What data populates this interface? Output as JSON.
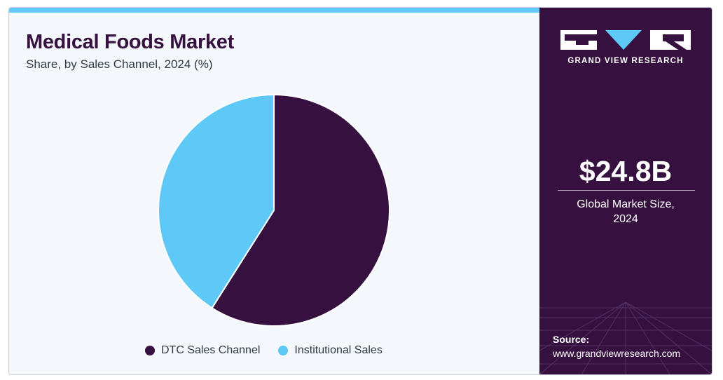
{
  "header": {
    "title": "Medical Foods Market",
    "subtitle": "Share, by Sales Channel, 2024 (%)"
  },
  "chart_data": {
    "type": "pie",
    "title": "Medical Foods Market",
    "subtitle": "Share, by Sales Channel, 2024 (%)",
    "categories": [
      "DTC Sales Channel",
      "Institutional Sales"
    ],
    "values": [
      59,
      41
    ],
    "colors": [
      "#36113f",
      "#5ec8f6"
    ],
    "start_angle_deg": 0,
    "direction": "clockwise",
    "legend_position": "bottom"
  },
  "brand": {
    "name": "GRAND VIEW RESEARCH",
    "logo_icon": "gvr-logo-icon"
  },
  "stat": {
    "value": "$24.8B",
    "caption_line1": "Global Market Size,",
    "caption_line2": "2024"
  },
  "source": {
    "label": "Source:",
    "url": "www.grandviewresearch.com"
  },
  "colors": {
    "panel": "#36113f",
    "accent": "#5ec8f6",
    "background": "#f4f8fc"
  }
}
